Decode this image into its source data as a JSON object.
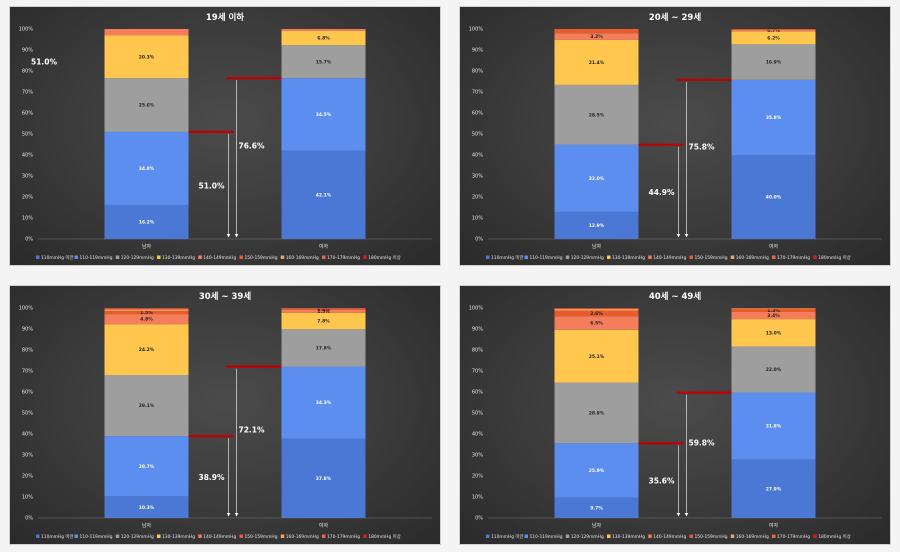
{
  "chart_data": [
    {
      "type": "bar",
      "stacked": true,
      "title": "19세 이하",
      "categories": [
        "남자",
        "여자"
      ],
      "ylim": [
        0,
        100
      ],
      "yticks": [
        "0%",
        "10%",
        "20%",
        "30%",
        "40%",
        "50%",
        "60%",
        "70%",
        "80%",
        "90%",
        "100%"
      ],
      "series": [
        {
          "name": "110mmHg 미만",
          "values": [
            16.2,
            42.1
          ]
        },
        {
          "name": "110-119mmHg",
          "values": [
            34.8,
            34.5
          ]
        },
        {
          "name": "120-129mmHg",
          "values": [
            25.6,
            15.7
          ]
        },
        {
          "name": "130-139mmHg",
          "values": [
            20.3,
            6.8
          ]
        },
        {
          "name": "140-149mmHg",
          "values": [
            3.1,
            0.9
          ]
        },
        {
          "name": "150-159mmHg",
          "values": [
            0,
            0
          ]
        },
        {
          "name": "160-169mmHg",
          "values": [
            0,
            0
          ]
        },
        {
          "name": "170-179mmHg",
          "values": [
            0,
            0
          ]
        },
        {
          "name": "180mmHg 이상",
          "values": [
            0,
            0
          ]
        }
      ],
      "visible_labels": [
        [
          "16.2%",
          "34.8%",
          "25.6%",
          "20.3%",
          ""
        ],
        [
          "42.1%",
          "34.5%",
          "15.7%",
          "6.8%",
          ""
        ]
      ],
      "annotations": {
        "male_cumulative": "51.0%",
        "female_cumulative": "76.6%",
        "corner_note": "51.0%"
      }
    },
    {
      "type": "bar",
      "stacked": true,
      "title": "20세 ~ 29세",
      "categories": [
        "남자",
        "여자"
      ],
      "ylim": [
        0,
        100
      ],
      "yticks": [
        "0%",
        "10%",
        "20%",
        "30%",
        "40%",
        "50%",
        "60%",
        "70%",
        "80%",
        "90%",
        "100%"
      ],
      "series": [
        {
          "name": "110mmHg 미만",
          "values": [
            12.9,
            40.0
          ]
        },
        {
          "name": "110-119mmHg",
          "values": [
            32.0,
            35.8
          ]
        },
        {
          "name": "120-129mmHg",
          "values": [
            28.5,
            16.9
          ]
        },
        {
          "name": "130-139mmHg",
          "values": [
            21.4,
            6.2
          ]
        },
        {
          "name": "140-149mmHg",
          "values": [
            3.2,
            0.7
          ]
        },
        {
          "name": "150-159mmHg",
          "values": [
            2.0,
            0.4
          ]
        },
        {
          "name": "160-169mmHg",
          "values": [
            0,
            0
          ]
        },
        {
          "name": "170-179mmHg",
          "values": [
            0,
            0
          ]
        },
        {
          "name": "180mmHg 이상",
          "values": [
            0,
            0
          ]
        }
      ],
      "visible_labels": [
        [
          "12.9%",
          "32.0%",
          "28.5%",
          "21.4%",
          "3.2%",
          ""
        ],
        [
          "40.0%",
          "35.8%",
          "16.9%",
          "6.2%",
          "0.7%",
          ""
        ]
      ],
      "annotations": {
        "male_cumulative": "44.9%",
        "female_cumulative": "75.8%"
      }
    },
    {
      "type": "bar",
      "stacked": true,
      "title": "30세 ~ 39세",
      "categories": [
        "남자",
        "여자"
      ],
      "ylim": [
        0,
        100
      ],
      "yticks": [
        "0%",
        "10%",
        "20%",
        "30%",
        "40%",
        "50%",
        "60%",
        "70%",
        "80%",
        "90%",
        "100%"
      ],
      "series": [
        {
          "name": "110mmHg 미만",
          "values": [
            10.3,
            37.8
          ]
        },
        {
          "name": "110-119mmHg",
          "values": [
            28.7,
            34.3
          ]
        },
        {
          "name": "120-129mmHg",
          "values": [
            29.1,
            17.8
          ]
        },
        {
          "name": "130-139mmHg",
          "values": [
            24.2,
            7.8
          ]
        },
        {
          "name": "140-149mmHg",
          "values": [
            4.8,
            1.5
          ]
        },
        {
          "name": "150-159mmHg",
          "values": [
            1.5,
            0.4
          ]
        },
        {
          "name": "160-169mmHg",
          "values": [
            0.8,
            0.2
          ]
        },
        {
          "name": "170-179mmHg",
          "values": [
            0.4,
            0.1
          ]
        },
        {
          "name": "180mmHg 이상",
          "values": [
            0.2,
            0.1
          ]
        }
      ],
      "visible_labels": [
        [
          "10.3%",
          "28.7%",
          "29.1%",
          "24.2%",
          "4.8%",
          "1.5%"
        ],
        [
          "37.8%",
          "34.3%",
          "17.8%",
          "7.8%",
          "1.5%",
          "0.4%"
        ]
      ],
      "annotations": {
        "male_cumulative": "38.9%",
        "female_cumulative": "72.1%"
      }
    },
    {
      "type": "bar",
      "stacked": true,
      "title": "40세 ~ 49세",
      "categories": [
        "남자",
        "여자"
      ],
      "ylim": [
        0,
        100
      ],
      "yticks": [
        "0%",
        "10%",
        "20%",
        "30%",
        "40%",
        "50%",
        "60%",
        "70%",
        "80%",
        "90%",
        "100%"
      ],
      "series": [
        {
          "name": "110mmHg 미만",
          "values": [
            9.7,
            27.9
          ]
        },
        {
          "name": "110-119mmHg",
          "values": [
            25.9,
            31.8
          ]
        },
        {
          "name": "120-129mmHg",
          "values": [
            28.9,
            22.0
          ]
        },
        {
          "name": "130-139mmHg",
          "values": [
            25.1,
            13.0
          ]
        },
        {
          "name": "140-149mmHg",
          "values": [
            6.5,
            3.4
          ]
        },
        {
          "name": "150-159mmHg",
          "values": [
            2.6,
            1.3
          ]
        },
        {
          "name": "160-169mmHg",
          "values": [
            0.8,
            0.4
          ]
        },
        {
          "name": "170-179mmHg",
          "values": [
            0.3,
            0.1
          ]
        },
        {
          "name": "180mmHg 이상",
          "values": [
            0.2,
            0.1
          ]
        }
      ],
      "visible_labels": [
        [
          "9.7%",
          "25.9%",
          "28.9%",
          "25.1%",
          "6.5%",
          "2.6%"
        ],
        [
          "27.9%",
          "31.8%",
          "22.0%",
          "13.0%",
          "3.4%",
          "1.3%"
        ]
      ],
      "annotations": {
        "male_cumulative": "35.6%",
        "female_cumulative": "59.8%"
      }
    }
  ],
  "colors": [
    "#4a78d4",
    "#5c8ef0",
    "#9e9e9e",
    "#ffc74d",
    "#f47e5c",
    "#e85b2a",
    "#f2a25c",
    "#e36a44",
    "#d0221c"
  ],
  "marker_color": "#c00000"
}
